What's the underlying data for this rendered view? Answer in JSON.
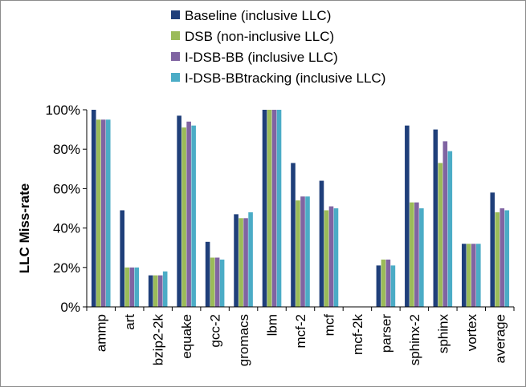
{
  "chart_data": {
    "type": "bar",
    "title": "",
    "xlabel": "",
    "ylabel": "LLC Miss-rate",
    "ylim": [
      0,
      100
    ],
    "yticks": [
      "0%",
      "20%",
      "40%",
      "60%",
      "80%",
      "100%"
    ],
    "grid": false,
    "legend_position": "top",
    "categories": [
      "ammp",
      "art",
      "bzip2-2k",
      "equake",
      "gcc-2",
      "gromacs",
      "lbm",
      "mcf-2",
      "mcf",
      "mcf-2k",
      "parser",
      "sphinx-2",
      "sphinx",
      "vortex",
      "average"
    ],
    "series": [
      {
        "name": "Baseline (inclusive LLC)",
        "color": "#1f3f7a",
        "values": [
          100,
          49,
          16,
          97,
          33,
          47,
          100,
          73,
          64,
          0,
          21,
          92,
          90,
          32,
          58
        ]
      },
      {
        "name": "DSB (non-inclusive LLC)",
        "color": "#9bbb59",
        "values": [
          95,
          20,
          16,
          91,
          25,
          45,
          100,
          54,
          49,
          0,
          24,
          53,
          73,
          32,
          48
        ]
      },
      {
        "name": "I-DSB-BB (inclusive LLC)",
        "color": "#8064a2",
        "values": [
          95,
          20,
          16,
          94,
          25,
          45,
          100,
          56,
          51,
          0,
          24,
          53,
          84,
          32,
          50
        ]
      },
      {
        "name": "I-DSB-BBtracking (inclusive LLC)",
        "color": "#4bacc6",
        "values": [
          95,
          20,
          18,
          92,
          24,
          48,
          100,
          56,
          50,
          0,
          21,
          50,
          79,
          32,
          49
        ]
      }
    ]
  }
}
